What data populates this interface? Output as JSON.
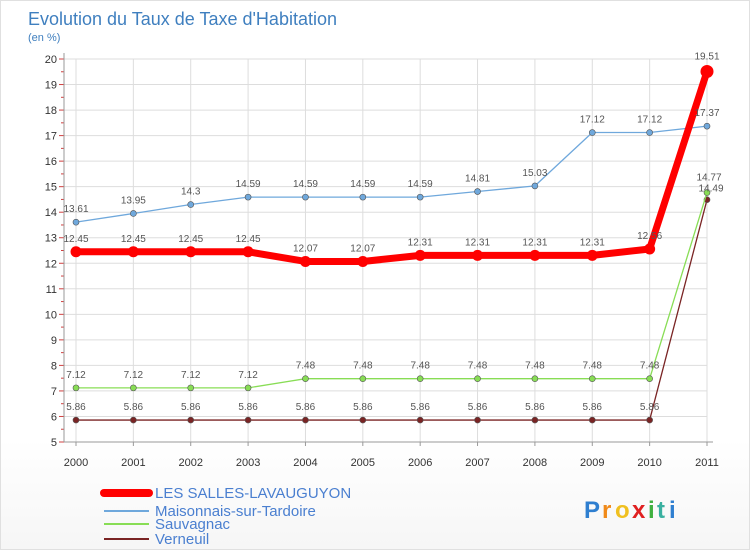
{
  "chart_data": {
    "type": "line",
    "title": "Evolution du Taux de Taxe d'Habitation",
    "ylabel": "(en %)",
    "xlabel": "",
    "x": [
      "2000",
      "2001",
      "2002",
      "2003",
      "2004",
      "2005",
      "2006",
      "2007",
      "2008",
      "2009",
      "2010",
      "2011"
    ],
    "ylim": [
      5,
      20
    ],
    "yticks": [
      5,
      6,
      7,
      8,
      9,
      10,
      11,
      12,
      13,
      14,
      15,
      16,
      17,
      18,
      19,
      20
    ],
    "grid": true,
    "legend_position": "bottom-left",
    "series": [
      {
        "name": "LES SALLES-LAVAUGUYON",
        "color": "#ff0000",
        "values": [
          12.45,
          12.45,
          12.45,
          12.45,
          12.07,
          12.07,
          12.31,
          12.31,
          12.31,
          12.31,
          12.56,
          19.51
        ],
        "labels": [
          "12.45",
          "12.45",
          "12.45",
          "12.45",
          "12.07",
          "12.07",
          "12.31",
          "12.31",
          "12.31",
          "12.31",
          "12.56",
          "19.51"
        ]
      },
      {
        "name": "Maisonnais-sur-Tardoire",
        "color": "#6fa8dc",
        "values": [
          13.61,
          13.95,
          14.3,
          14.59,
          14.59,
          14.59,
          14.59,
          14.81,
          15.03,
          17.12,
          17.12,
          17.37
        ],
        "labels": [
          "13.61",
          "13.95",
          "14.3",
          "14.59",
          "14.59",
          "14.59",
          "14.59",
          "14.81",
          "15.03",
          "17.12",
          "17.12",
          "17.37"
        ]
      },
      {
        "name": "Sauvagnac",
        "color": "#88dd55",
        "values": [
          7.12,
          7.12,
          7.12,
          7.12,
          7.48,
          7.48,
          7.48,
          7.48,
          7.48,
          7.48,
          7.48,
          14.77
        ],
        "labels": [
          "7.12",
          "7.12",
          "7.12",
          "7.12",
          "7.48",
          "7.48",
          "7.48",
          "7.48",
          "7.48",
          "7.48",
          "7.48",
          "14.77"
        ]
      },
      {
        "name": "Verneuil",
        "color": "#7a2424",
        "values": [
          5.86,
          5.86,
          5.86,
          5.86,
          5.86,
          5.86,
          5.86,
          5.86,
          5.86,
          5.86,
          5.86,
          14.49
        ],
        "labels": [
          "5.86",
          "5.86",
          "5.86",
          "5.86",
          "5.86",
          "5.86",
          "5.86",
          "5.86",
          "5.86",
          "5.86",
          "5.86",
          "14.49"
        ]
      }
    ]
  },
  "logo": {
    "text": "Proxiti",
    "letters": [
      "P",
      "r",
      "o",
      "x",
      "i",
      "t",
      "i"
    ],
    "colors": [
      "#2f7fd0",
      "#f08a1a",
      "#f0c020",
      "#e02020",
      "#40b040",
      "#3ab0a0",
      "#2f7fd0"
    ]
  }
}
